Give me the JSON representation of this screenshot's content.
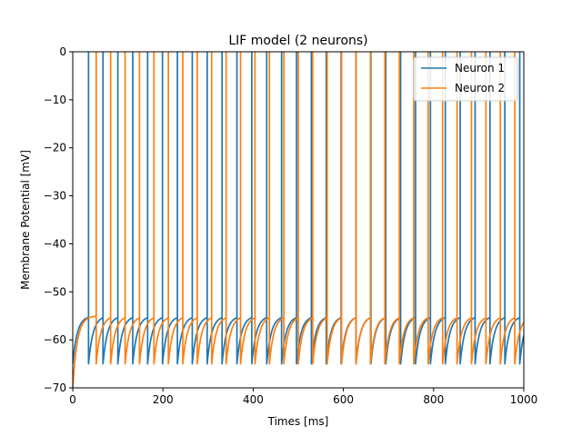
{
  "chart_data": {
    "type": "line",
    "title": "LIF model (2 neurons)",
    "xlabel": "Times [ms]",
    "ylabel": "Membrane Potential [mV]",
    "xlim": [
      0,
      1000
    ],
    "ylim": [
      -70,
      0
    ],
    "x_ticks": [
      "0",
      "200",
      "400",
      "600",
      "800",
      "1000"
    ],
    "y_ticks": [
      "0",
      "−10",
      "−20",
      "−30",
      "−40",
      "−50",
      "−60",
      "−70"
    ],
    "grid": false,
    "legend_position": "upper right",
    "series": [
      {
        "name": "Neuron 1",
        "color": "#1f77b4",
        "start_potential_mv": -65,
        "reset_potential_mv": -65,
        "threshold_mv": -55,
        "spike_peak_mv": 0,
        "spike_times_ms": [
          35,
          67,
          100,
          133,
          166,
          199,
          232,
          265,
          298,
          331,
          364,
          397,
          430,
          463,
          496,
          529,
          562,
          595,
          628,
          661,
          694,
          727,
          760,
          793,
          826,
          859,
          892,
          925,
          958,
          991
        ]
      },
      {
        "name": "Neuron 2",
        "color": "#ff7f0e",
        "start_potential_mv": -70,
        "reset_potential_mv": -65,
        "threshold_mv": -55,
        "spike_peak_mv": 0,
        "spike_times_ms": [
          52,
          84,
          116,
          148,
          180,
          212,
          244,
          276,
          308,
          340,
          372,
          404,
          436,
          468,
          500,
          532,
          564,
          596,
          628,
          660,
          692,
          724,
          756,
          788,
          820,
          852,
          884,
          916,
          948,
          980
        ]
      }
    ]
  }
}
